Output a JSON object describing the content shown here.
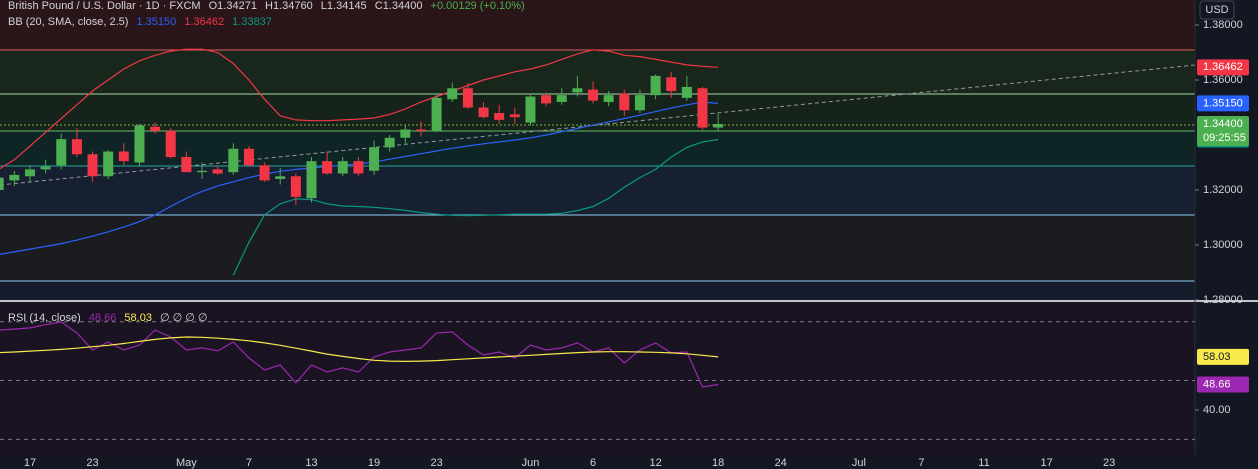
{
  "chart_data": [
    {
      "type": "candlestick",
      "title": "British Pound / U.S. Dollar · 1D · FXCM",
      "ohlc_labels": [
        "O1.34271",
        "H1.34760",
        "L1.34145",
        "C1.34400"
      ],
      "change_label": "+0.00129 (+0.10%)",
      "currency": "USD",
      "time_label": "09:25:55",
      "last_label": "1.34400",
      "up_color": "#4caf50",
      "down_color": "#f23645",
      "tag_color": "#4caf50",
      "categories": [
        null,
        null,
        "17",
        null,
        null,
        null,
        "23",
        null,
        null,
        null,
        null,
        null,
        "May",
        null,
        null,
        null,
        "7",
        null,
        null,
        null,
        "13",
        null,
        null,
        null,
        "19",
        null,
        null,
        null,
        "23",
        null,
        null,
        null,
        null,
        null,
        "Jun",
        null,
        null,
        null,
        "6",
        null,
        null,
        null,
        "12",
        null,
        null,
        null,
        "18",
        null,
        null,
        null,
        "24",
        null,
        null,
        null,
        null,
        "Jul",
        null,
        null,
        null,
        "7",
        null,
        null,
        null,
        "11",
        null,
        null,
        null,
        "17",
        null,
        null,
        null,
        "23",
        null,
        null,
        null,
        null,
        null
      ],
      "open": [
        1.32,
        1.3235,
        1.325,
        1.3275,
        1.329,
        1.3385,
        1.333,
        1.325,
        1.334,
        1.33,
        1.343,
        1.3415,
        1.332,
        1.3265,
        1.3275,
        1.3265,
        1.335,
        1.329,
        1.324,
        1.325,
        1.317,
        1.3305,
        1.326,
        1.3305,
        1.327,
        1.3355,
        1.339,
        1.342,
        1.3415,
        1.353,
        1.357,
        1.35,
        1.348,
        1.3475,
        1.3445,
        1.3545,
        1.352,
        1.3555,
        1.3565,
        1.352,
        1.355,
        1.349,
        1.3545,
        1.361,
        1.3535,
        1.357,
        1.34271,
        null,
        null,
        null,
        null,
        null,
        null,
        null,
        null,
        null,
        null,
        null,
        null,
        null,
        null,
        null,
        null,
        null,
        null,
        null,
        null,
        null,
        null,
        null,
        null,
        null,
        null,
        null,
        null,
        null,
        null
      ],
      "high": [
        1.326,
        1.327,
        1.329,
        1.331,
        1.3405,
        1.3425,
        1.334,
        1.3345,
        1.337,
        1.344,
        1.3445,
        1.3425,
        1.334,
        1.33,
        1.329,
        1.337,
        1.336,
        1.33,
        1.328,
        1.326,
        1.332,
        1.334,
        1.332,
        1.332,
        1.338,
        1.34,
        1.3435,
        1.345,
        1.3545,
        1.359,
        1.359,
        1.352,
        1.351,
        1.35,
        1.3545,
        1.3555,
        1.357,
        1.3615,
        1.3595,
        1.356,
        1.3565,
        1.3565,
        1.362,
        1.363,
        1.3615,
        1.3575,
        1.3476,
        null,
        null,
        null,
        null,
        null,
        null,
        null,
        null,
        null,
        null,
        null,
        null,
        null,
        null,
        null,
        null,
        null,
        null,
        null,
        null,
        null,
        null,
        null,
        null,
        null,
        null,
        null,
        null,
        null,
        null
      ],
      "low": [
        1.318,
        1.3215,
        1.323,
        1.326,
        1.3275,
        1.332,
        1.323,
        1.324,
        1.329,
        1.3285,
        1.3405,
        1.3315,
        1.3265,
        1.324,
        1.3255,
        1.3255,
        1.3285,
        1.323,
        1.322,
        1.3145,
        1.3155,
        1.3255,
        1.325,
        1.325,
        1.3255,
        1.334,
        1.337,
        1.3395,
        1.341,
        1.352,
        1.3495,
        1.346,
        1.344,
        1.344,
        1.3435,
        1.3505,
        1.351,
        1.354,
        1.3515,
        1.3505,
        1.347,
        1.348,
        1.353,
        1.3535,
        1.3525,
        1.342,
        1.34145,
        null,
        null,
        null,
        null,
        null,
        null,
        null,
        null,
        null,
        null,
        null,
        null,
        null,
        null,
        null,
        null,
        null,
        null,
        null,
        null,
        null,
        null,
        null,
        null,
        null,
        null,
        null,
        null,
        null,
        null
      ],
      "close": [
        1.3245,
        1.3255,
        1.3275,
        1.3285,
        1.3385,
        1.333,
        1.325,
        1.334,
        1.3305,
        1.3435,
        1.3415,
        1.332,
        1.3265,
        1.327,
        1.326,
        1.335,
        1.329,
        1.3235,
        1.325,
        1.3175,
        1.3305,
        1.326,
        1.3305,
        1.326,
        1.3355,
        1.339,
        1.342,
        1.3415,
        1.3535,
        1.357,
        1.35,
        1.3465,
        1.3455,
        1.3465,
        1.354,
        1.3515,
        1.3545,
        1.357,
        1.3525,
        1.3545,
        1.349,
        1.3545,
        1.3615,
        1.356,
        1.3575,
        1.34271,
        1.344,
        null,
        null,
        null,
        null,
        null,
        null,
        null,
        null,
        null,
        null,
        null,
        null,
        null,
        null,
        null,
        null,
        null,
        null,
        null,
        null,
        null,
        null,
        null,
        null,
        null,
        null,
        null,
        null,
        null,
        null
      ],
      "overlay_title": "BB (20, SMA, close, 2.5)",
      "series": [
        {
          "color": "#2962ff",
          "last_label": "1.35150",
          "values": [
            1.2965,
            1.2975,
            1.2985,
            1.2995,
            1.3005,
            1.3018,
            1.3032,
            1.3048,
            1.3065,
            1.3085,
            1.311,
            1.314,
            1.317,
            1.3195,
            1.3215,
            1.323,
            1.3245,
            1.3258,
            1.3268,
            1.3275,
            1.328,
            1.3285,
            1.329,
            1.3295,
            1.3302,
            1.3312,
            1.3322,
            1.3332,
            1.3342,
            1.3352,
            1.336,
            1.3368,
            1.3375,
            1.3382,
            1.339,
            1.34,
            1.3412,
            1.3424,
            1.3436,
            1.3448,
            1.346,
            1.3472,
            1.3485,
            1.3498,
            1.351,
            1.352,
            1.3515,
            null,
            null,
            null,
            null,
            null,
            null,
            null,
            null,
            null,
            null,
            null,
            null,
            null,
            null,
            null,
            null,
            null,
            null,
            null,
            null,
            null,
            null,
            null,
            null,
            null,
            null,
            null,
            null,
            null,
            null
          ]
        },
        {
          "color": "#f23645",
          "last_label": "1.36462",
          "values": [
            1.3275,
            1.331,
            1.336,
            1.341,
            1.346,
            1.351,
            1.356,
            1.36,
            1.364,
            1.367,
            1.369,
            1.3705,
            1.3712,
            1.3712,
            1.37,
            1.366,
            1.36,
            1.353,
            1.347,
            1.3455,
            1.3452,
            1.3452,
            1.3455,
            1.3458,
            1.3462,
            1.3475,
            1.3495,
            1.352,
            1.354,
            1.356,
            1.358,
            1.36,
            1.3615,
            1.363,
            1.364,
            1.3655,
            1.3675,
            1.3695,
            1.371,
            1.3705,
            1.369,
            1.3685,
            1.3675,
            1.3665,
            1.3655,
            1.365,
            1.36462,
            null,
            null,
            null,
            null,
            null,
            null,
            null,
            null,
            null,
            null,
            null,
            null,
            null,
            null,
            null,
            null,
            null,
            null,
            null,
            null,
            null,
            null,
            null,
            null,
            null,
            null,
            null,
            null,
            null,
            null
          ]
        },
        {
          "color": "#089981",
          "last_label": "1.33837",
          "values": [
            null,
            null,
            null,
            null,
            null,
            null,
            null,
            null,
            null,
            null,
            null,
            null,
            null,
            null,
            null,
            1.289,
            1.301,
            1.311,
            1.315,
            1.3168,
            1.3165,
            1.315,
            1.3142,
            1.314,
            1.3137,
            1.3132,
            1.3126,
            1.3118,
            1.3112,
            1.3108,
            1.3107,
            1.3108,
            1.311,
            1.3112,
            1.3112,
            1.3112,
            1.3115,
            1.3125,
            1.314,
            1.317,
            1.321,
            1.3245,
            1.3275,
            1.332,
            1.3355,
            1.3375,
            1.33837,
            null,
            null,
            null,
            null,
            null,
            null,
            null,
            null,
            null,
            null,
            null,
            null,
            null,
            null,
            null,
            null,
            null,
            null,
            null,
            null,
            null,
            null,
            null,
            null,
            null,
            null,
            null,
            null,
            null,
            null
          ]
        }
      ],
      "ylim": [
        1.28,
        1.3891
      ],
      "yticks": [
        {
          "value": 1.28,
          "label": "1.28000"
        },
        {
          "value": 1.3,
          "label": "1.30000"
        },
        {
          "value": 1.32,
          "label": "1.32000"
        },
        {
          "value": 1.36,
          "label": "1.36000"
        },
        {
          "value": 1.38,
          "label": "1.38000"
        }
      ]
    },
    {
      "type": "line",
      "title": "RSI (14, close)",
      "extra_label": "∅ ∅ ∅ ∅",
      "series": [
        {
          "color": "#9c27b0",
          "last_label": "48.66",
          "values": [
            67.2,
            67.5,
            67.9,
            69.0,
            69.9,
            66.2,
            60.4,
            63.1,
            60.4,
            62.1,
            67.2,
            64.8,
            60.4,
            61.1,
            60.1,
            63.1,
            57.7,
            53.6,
            55.3,
            49.2,
            55.3,
            52.9,
            54.3,
            52.9,
            58.0,
            59.7,
            60.4,
            61.1,
            66.2,
            66.5,
            62.1,
            58.7,
            59.7,
            57.7,
            62.1,
            60.4,
            61.1,
            62.8,
            59.7,
            61.1,
            56.0,
            60.4,
            62.8,
            59.4,
            59.7,
            47.8,
            48.66,
            null,
            null,
            null,
            null,
            null,
            null,
            null,
            null,
            null,
            null,
            null,
            null,
            null,
            null,
            null,
            null,
            null,
            null,
            null,
            null,
            null,
            null,
            null,
            null,
            null,
            null,
            null,
            null,
            null,
            null
          ]
        },
        {
          "color": "#f7e94e",
          "last_label": "58.03",
          "values": [
            59.5,
            59.7,
            60.0,
            60.3,
            60.6,
            61.0,
            61.5,
            62.0,
            62.6,
            63.3,
            64.0,
            64.5,
            64.8,
            64.7,
            64.4,
            64.0,
            63.5,
            62.8,
            62.0,
            61.0,
            60.0,
            59.0,
            58.2,
            57.5,
            56.9,
            56.6,
            56.5,
            56.6,
            56.8,
            57.1,
            57.4,
            57.7,
            58.0,
            58.3,
            58.6,
            58.9,
            59.2,
            59.5,
            59.7,
            59.8,
            59.8,
            59.7,
            59.6,
            59.4,
            59.1,
            58.6,
            58.03,
            null,
            null,
            null,
            null,
            null,
            null,
            null,
            null,
            null,
            null,
            null,
            null,
            null,
            null,
            null,
            null,
            null,
            null,
            null,
            null,
            null,
            null,
            null,
            null,
            null,
            null,
            null,
            null,
            null,
            null
          ]
        }
      ],
      "hlines": [
        70,
        50,
        30
      ],
      "ylim": [
        24.7,
        76.7
      ],
      "yticks": [
        {
          "value": 40,
          "label": "40.00"
        }
      ]
    }
  ]
}
